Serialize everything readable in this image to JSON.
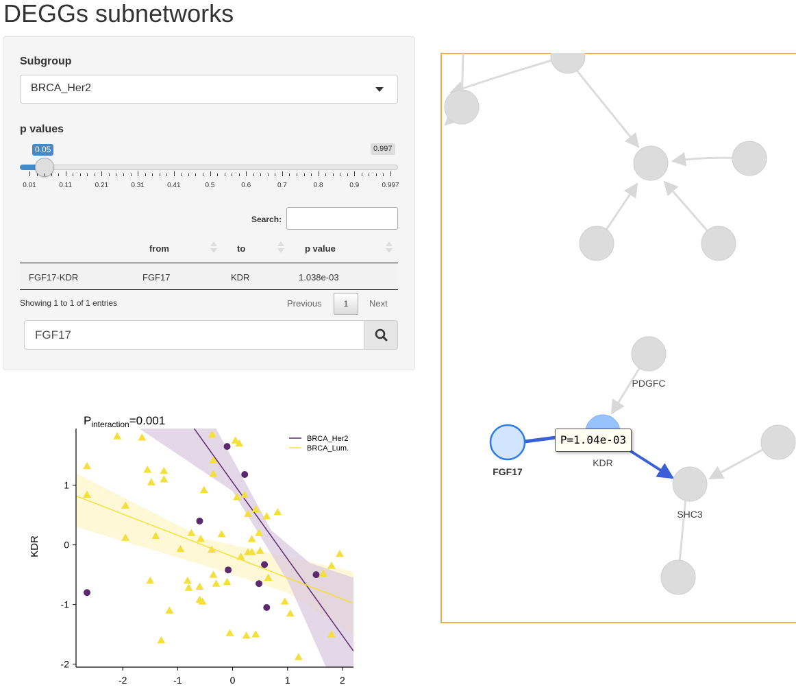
{
  "page_title": "DEGGs subnetworks",
  "subgroup": {
    "label": "Subgroup",
    "selected": "BRCA_Her2"
  },
  "pvalues": {
    "label": "p values",
    "current": "0.05",
    "max": "0.997",
    "ticks": [
      "0.01",
      "0.11",
      "0.21",
      "0.31",
      "0.41",
      "0.5",
      "0.6",
      "0.7",
      "0.8",
      "0.9",
      "0.997"
    ],
    "fraction": 0.04
  },
  "table": {
    "search_label": "Search:",
    "search_value": "",
    "columns": [
      "",
      "from",
      "to",
      "p value"
    ],
    "rows": [
      [
        "FGF17-KDR",
        "FGF17",
        "KDR",
        "1.038e-03"
      ]
    ],
    "info": "Showing 1 to 1 of 1 entries",
    "previous": "Previous",
    "page": "1",
    "next": "Next"
  },
  "gene_search": {
    "value": "FGF17",
    "button_icon": "search-icon"
  },
  "network": {
    "tooltip": "P=1.04e-03",
    "labels": {
      "pdgfc": "PDGFC",
      "kdr": "KDR",
      "fgf17": "FGF17",
      "shc3": "SHC3"
    },
    "colors": {
      "border": "#f0ad4e",
      "selected_edge": "#3b5fd6",
      "grey_node": "#dcdcdc"
    }
  },
  "chart_data": {
    "type": "scatter",
    "title": "P",
    "title_subscript": "interaction",
    "title_suffix": "=0.001",
    "xlabel": "",
    "ylabel": "KDR",
    "xlim": [
      -2.85,
      2.2
    ],
    "ylim": [
      -2.05,
      1.95
    ],
    "xticks": [
      "-2",
      "-1",
      "0",
      "1",
      "2"
    ],
    "yticks": [
      "-2",
      "-1",
      "0",
      "1"
    ],
    "legend_position": "top-right",
    "series": [
      {
        "name": "BRCA_Her2",
        "marker": "circle",
        "color": "#5b2a6e",
        "points": [
          [
            -2.65,
            -0.8
          ],
          [
            -0.1,
            1.65
          ],
          [
            0.22,
            1.18
          ],
          [
            -0.6,
            0.4
          ],
          [
            -0.08,
            -0.42
          ],
          [
            0.58,
            -0.33
          ],
          [
            0.48,
            -0.65
          ],
          [
            0.62,
            -1.05
          ],
          [
            1.52,
            -0.5
          ]
        ],
        "fit": [
          [
            -0.7,
            1.95
          ],
          [
            2.2,
            -1.78
          ]
        ],
        "band_upper": [
          [
            -0.3,
            1.95
          ],
          [
            0.7,
            0.25
          ],
          [
            1.4,
            -0.3
          ],
          [
            2.2,
            -0.55
          ]
        ],
        "band_lower": [
          [
            2.2,
            -2.05
          ],
          [
            1.7,
            -2.05
          ],
          [
            1.0,
            -0.6
          ],
          [
            0.0,
            0.9
          ],
          [
            -1.7,
            1.95
          ]
        ]
      },
      {
        "name": "BRCA_Lum.",
        "marker": "triangle",
        "color": "#f3e03b",
        "points": [
          [
            -2.1,
            1.82
          ],
          [
            -1.65,
            1.8
          ],
          [
            -2.65,
            1.32
          ],
          [
            -1.55,
            1.26
          ],
          [
            -1.25,
            1.24
          ],
          [
            -1.48,
            1.05
          ],
          [
            -1.25,
            1.1
          ],
          [
            -2.65,
            0.84
          ],
          [
            -1.95,
            0.66
          ],
          [
            -0.52,
            0.92
          ],
          [
            -0.35,
            1.42
          ],
          [
            -0.35,
            1.19
          ],
          [
            0.05,
            1.75
          ],
          [
            -0.37,
            1.85
          ],
          [
            0.12,
            1.7
          ],
          [
            0.08,
            0.8
          ],
          [
            0.22,
            0.84
          ],
          [
            0.28,
            0.52
          ],
          [
            0.42,
            0.6
          ],
          [
            0.48,
            0.2
          ],
          [
            0.35,
            0.1
          ],
          [
            0.62,
            0.48
          ],
          [
            0.82,
            0.55
          ],
          [
            -1.95,
            0.12
          ],
          [
            -0.58,
            0.1
          ],
          [
            -0.75,
            0.2
          ],
          [
            -1.4,
            0.15
          ],
          [
            -0.2,
            0.18
          ],
          [
            -0.95,
            -0.07
          ],
          [
            -0.38,
            -0.08
          ],
          [
            0.15,
            -0.2
          ],
          [
            0.28,
            -0.12
          ],
          [
            0.35,
            -0.12
          ],
          [
            0.5,
            -0.1
          ],
          [
            -0.35,
            -0.5
          ],
          [
            0.65,
            -0.55
          ],
          [
            -0.6,
            -0.7
          ],
          [
            -0.3,
            -0.65
          ],
          [
            -0.1,
            -0.62
          ],
          [
            -0.82,
            -0.6
          ],
          [
            -0.8,
            -0.72
          ],
          [
            -1.5,
            -0.6
          ],
          [
            -0.6,
            -0.92
          ],
          [
            -0.55,
            -0.95
          ],
          [
            1.65,
            -0.48
          ],
          [
            1.8,
            -0.35
          ],
          [
            1.95,
            -0.15
          ],
          [
            0.95,
            -0.95
          ],
          [
            1.05,
            -1.15
          ],
          [
            -1.15,
            -1.1
          ],
          [
            -0.05,
            -1.48
          ],
          [
            0.25,
            -1.52
          ],
          [
            0.42,
            -1.5
          ],
          [
            -1.3,
            -1.6
          ],
          [
            1.8,
            -1.5
          ],
          [
            1.2,
            -1.88
          ]
        ],
        "fit": [
          [
            -2.85,
            0.82
          ],
          [
            2.2,
            -0.98
          ]
        ],
        "band_upper": [
          [
            -2.85,
            1.2
          ],
          [
            -0.5,
            0.1
          ],
          [
            1.0,
            -0.2
          ],
          [
            2.2,
            -0.45
          ]
        ],
        "band_lower": [
          [
            2.2,
            -1.5
          ],
          [
            1.0,
            -0.8
          ],
          [
            -0.5,
            -0.35
          ],
          [
            -2.85,
            0.3
          ]
        ]
      }
    ]
  }
}
